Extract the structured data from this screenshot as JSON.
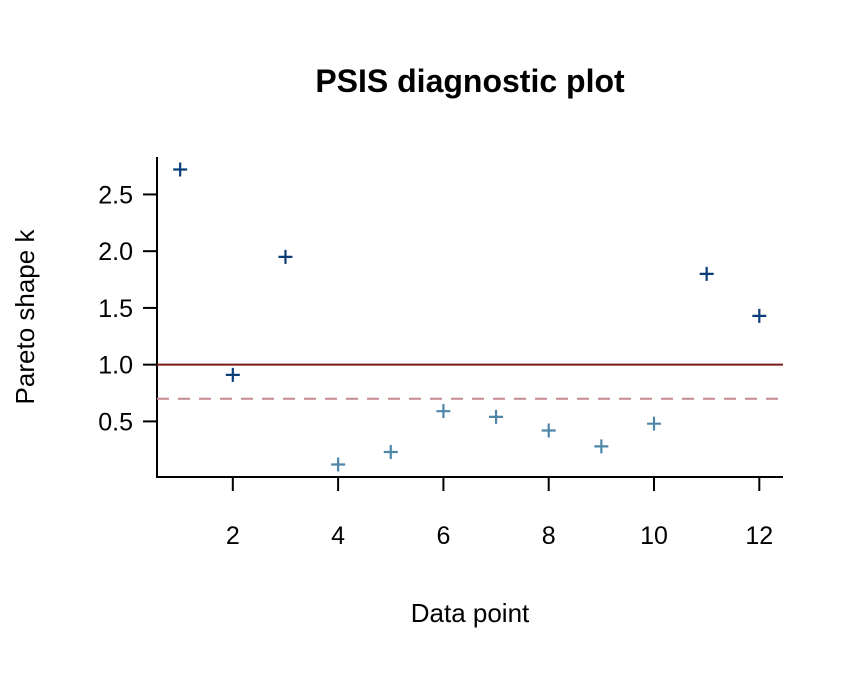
{
  "chart_data": {
    "type": "scatter",
    "title": "PSIS diagnostic plot",
    "xlabel": "Data point",
    "ylabel": "Pareto shape k",
    "x": [
      1,
      2,
      3,
      4,
      5,
      6,
      7,
      8,
      9,
      10,
      11,
      12
    ],
    "y": [
      2.72,
      0.91,
      1.95,
      0.12,
      0.23,
      0.59,
      0.54,
      0.42,
      0.28,
      0.48,
      1.8,
      1.43
    ],
    "xlim": [
      0.56,
      12.45
    ],
    "ylim": [
      0.01,
      2.83
    ],
    "xticks": [
      2,
      4,
      6,
      8,
      10,
      12
    ],
    "xtick_labels": [
      "2",
      "4",
      "6",
      "8",
      "10",
      "12"
    ],
    "yticks": [
      0.5,
      1.0,
      1.5,
      2.0,
      2.5
    ],
    "ytick_labels": [
      "0.5",
      "1.0",
      "1.5",
      "2.0",
      "2.5"
    ],
    "reference_lines": [
      {
        "y": 1.0,
        "style": "solid",
        "color": "#7a1a1a"
      },
      {
        "y": 0.7,
        "style": "dashed",
        "color": "#c48a8e"
      }
    ],
    "marker": "plus",
    "colors": {
      "high_k": "#0b3d7a",
      "low_k": "#4f86a8",
      "threshold": 0.7
    },
    "grid": false,
    "legend": "none"
  }
}
